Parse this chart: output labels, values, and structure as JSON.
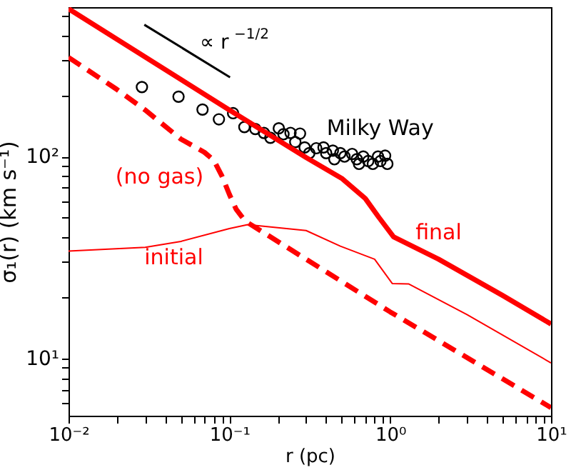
{
  "chart_data": {
    "type": "line",
    "xlabel": "r (pc)",
    "ylabel": "σ₁(r) (km s⁻¹)",
    "log": "xy",
    "grid": false,
    "xlim": [
      0.01,
      10
    ],
    "ylim": [
      5.2,
      550
    ],
    "xticks": [
      {
        "value": 0.01,
        "label": "10⁻²"
      },
      {
        "value": 0.02,
        "label": null
      },
      {
        "value": 0.03,
        "label": null
      },
      {
        "value": 0.04,
        "label": null
      },
      {
        "value": 0.05,
        "label": null
      },
      {
        "value": 0.06,
        "label": null
      },
      {
        "value": 0.07,
        "label": null
      },
      {
        "value": 0.08,
        "label": null
      },
      {
        "value": 0.09,
        "label": null
      },
      {
        "value": 0.1,
        "label": "10⁻¹"
      },
      {
        "value": 0.2,
        "label": null
      },
      {
        "value": 0.3,
        "label": null
      },
      {
        "value": 0.4,
        "label": null
      },
      {
        "value": 0.5,
        "label": null
      },
      {
        "value": 0.6,
        "label": null
      },
      {
        "value": 0.7,
        "label": null
      },
      {
        "value": 0.8,
        "label": null
      },
      {
        "value": 0.9,
        "label": null
      },
      {
        "value": 1,
        "label": "10⁰"
      },
      {
        "value": 2,
        "label": null
      },
      {
        "value": 3,
        "label": null
      },
      {
        "value": 4,
        "label": null
      },
      {
        "value": 5,
        "label": null
      },
      {
        "value": 6,
        "label": null
      },
      {
        "value": 7,
        "label": null
      },
      {
        "value": 8,
        "label": null
      },
      {
        "value": 9,
        "label": null
      },
      {
        "value": 10,
        "label": "10¹"
      }
    ],
    "yticks": [
      {
        "value": 6,
        "label": null
      },
      {
        "value": 7,
        "label": null
      },
      {
        "value": 8,
        "label": null
      },
      {
        "value": 9,
        "label": null
      },
      {
        "value": 10,
        "label": "10¹"
      },
      {
        "value": 20,
        "label": null
      },
      {
        "value": 30,
        "label": null
      },
      {
        "value": 40,
        "label": null
      },
      {
        "value": 50,
        "label": null
      },
      {
        "value": 60,
        "label": null
      },
      {
        "value": 70,
        "label": null
      },
      {
        "value": 80,
        "label": null
      },
      {
        "value": 90,
        "label": null
      },
      {
        "value": 100,
        "label": "10²"
      },
      {
        "value": 200,
        "label": null
      },
      {
        "value": 300,
        "label": null
      },
      {
        "value": 400,
        "label": null
      },
      {
        "value": 500,
        "label": null
      }
    ],
    "series": [
      {
        "name": "Milky Way",
        "type": "scatter",
        "marker": "circle",
        "color": "#000000",
        "x": [
          0.0286,
          0.0483,
          0.0681,
          0.0861,
          0.1055,
          0.124,
          0.145,
          0.164,
          0.18,
          0.203,
          0.217,
          0.24,
          0.275,
          0.257,
          0.294,
          0.314,
          0.347,
          0.385,
          0.4,
          0.44,
          0.45,
          0.49,
          0.52,
          0.58,
          0.62,
          0.64,
          0.68,
          0.73,
          0.78,
          0.84,
          0.87,
          0.93,
          0.96
        ],
        "values": [
          221,
          198,
          171,
          153,
          164,
          140,
          137,
          131,
          124,
          138,
          129,
          131,
          130,
          118,
          111,
          104,
          110,
          111,
          104,
          107,
          97,
          104,
          100,
          103,
          97,
          92,
          100,
          95,
          92,
          100,
          95,
          101,
          92
        ]
      },
      {
        "name": "final",
        "color": "#ff0000",
        "x": [
          0.01,
          0.1,
          0.3,
          0.5,
          0.7,
          0.85,
          1.05,
          2,
          5,
          10
        ],
        "values": [
          540,
          170,
          99,
          78,
          62,
          50,
          40,
          31,
          20.5,
          14.8
        ]
      },
      {
        "name": "(no gas)",
        "line_style": "dashed",
        "color": "#ff0000",
        "x": [
          0.01,
          0.02,
          0.03,
          0.05,
          0.07,
          0.08,
          0.09,
          0.1,
          0.11,
          0.125,
          1,
          10
        ],
        "values": [
          310,
          215,
          170,
          122,
          105,
          96,
          80,
          65,
          55,
          48,
          17,
          5.7
        ]
      },
      {
        "name": "initial",
        "color": "#ff0000",
        "x": [
          0.01,
          0.03,
          0.05,
          0.1,
          0.13,
          0.3,
          0.49,
          0.8,
          1.03,
          1.3,
          3,
          10
        ],
        "values": [
          34,
          35.5,
          38,
          44,
          46,
          43,
          36,
          31,
          23.5,
          23.4,
          16.5,
          9.5
        ]
      },
      {
        "color": "#000000",
        "x": [
          0.0296,
          0.101
        ],
        "values": [
          450,
          247
        ]
      }
    ],
    "annotations": [
      "∝ r$^{−1/2}$"
    ]
  }
}
